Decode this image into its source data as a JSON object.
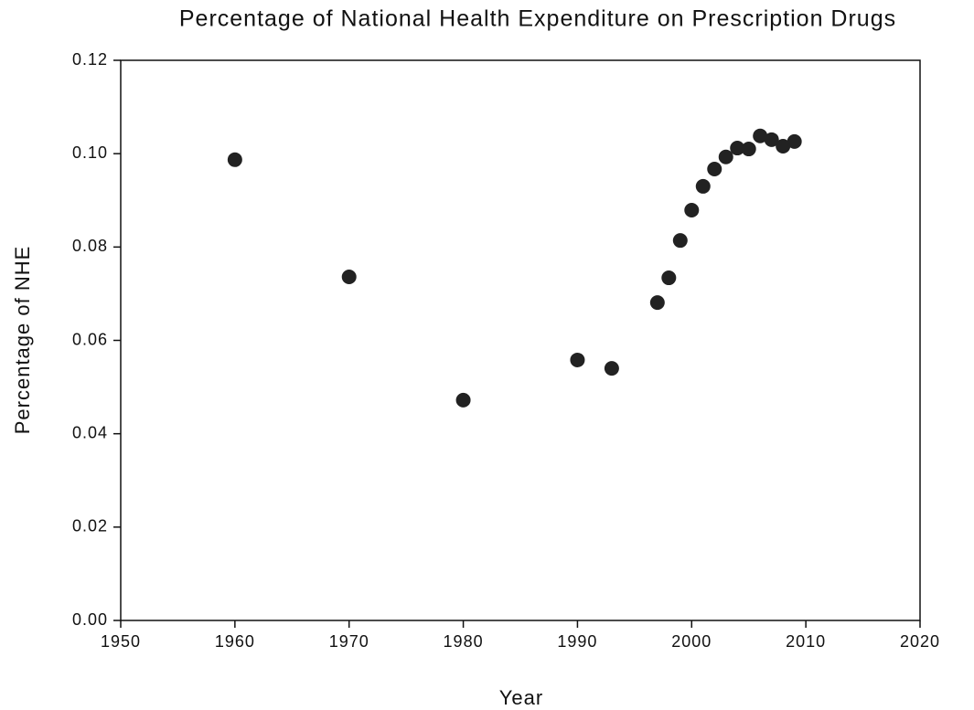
{
  "chart_data": {
    "type": "scatter",
    "title": "Percentage of National Health Expenditure on Prescription Drugs",
    "x_label": "Year",
    "y_label": "Percentage of NHE",
    "x": [
      1960,
      1970,
      1980,
      1990,
      1993,
      1997,
      1998,
      1999,
      2000,
      2001,
      2002,
      2003,
      2004,
      2005,
      2006,
      2007,
      2008,
      2009
    ],
    "values": [
      0.0987,
      0.0736,
      0.0472,
      0.0558,
      0.054,
      0.0681,
      0.0734,
      0.0814,
      0.0879,
      0.093,
      0.0967,
      0.0993,
      0.1012,
      0.101,
      0.1038,
      0.103,
      0.1016,
      0.1026
    ],
    "color": "#222222",
    "xlim": [
      1950,
      2020
    ],
    "xticks": [
      1950,
      1960,
      1970,
      1980,
      1990,
      2000,
      2010,
      2020
    ],
    "ylim": [
      0,
      0.12
    ],
    "yticks": [
      {
        "value": 0,
        "label": "0.00"
      },
      {
        "value": 0.02,
        "label": "0.02"
      },
      {
        "value": 0.04,
        "label": "0.04"
      },
      {
        "value": 0.06,
        "label": "0.06"
      },
      {
        "value": 0.08,
        "label": "0.08"
      },
      {
        "value": 0.1,
        "label": "0.10"
      },
      {
        "value": 0.12,
        "label": "0.12"
      }
    ]
  }
}
